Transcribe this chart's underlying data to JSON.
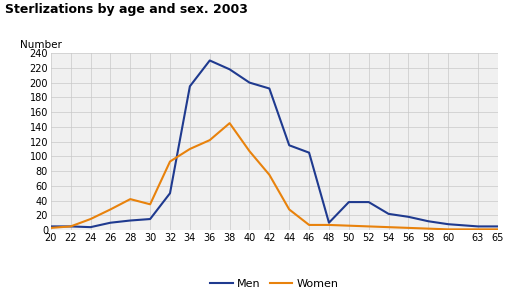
{
  "title": "Sterlizations by age and sex. 2003",
  "ylabel": "Number",
  "ages": [
    20,
    22,
    24,
    26,
    28,
    30,
    32,
    34,
    36,
    38,
    40,
    42,
    44,
    46,
    48,
    50,
    52,
    54,
    56,
    58,
    60,
    63,
    65
  ],
  "men": [
    5,
    5,
    4,
    10,
    13,
    15,
    50,
    195,
    230,
    218,
    200,
    192,
    115,
    105,
    10,
    38,
    38,
    22,
    18,
    12,
    8,
    5,
    5
  ],
  "women": [
    3,
    5,
    15,
    28,
    42,
    35,
    93,
    110,
    122,
    145,
    107,
    75,
    28,
    7,
    7,
    6,
    5,
    4,
    3,
    2,
    1,
    1,
    1
  ],
  "men_color": "#1f3a8f",
  "women_color": "#e8820c",
  "bg_color": "#f0f0f0",
  "grid_color": "#c8c8c8",
  "ylim": [
    0,
    240
  ],
  "yticks": [
    0,
    20,
    40,
    60,
    80,
    100,
    120,
    140,
    160,
    180,
    200,
    220,
    240
  ],
  "xticks": [
    20,
    22,
    24,
    26,
    28,
    30,
    32,
    34,
    36,
    38,
    40,
    42,
    44,
    46,
    48,
    50,
    52,
    54,
    56,
    58,
    60,
    63,
    65
  ],
  "legend_labels": [
    "Men",
    "Women"
  ]
}
